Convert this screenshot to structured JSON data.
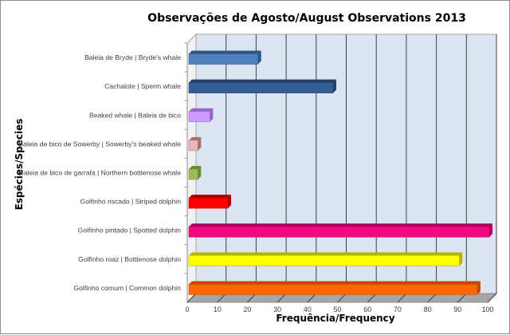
{
  "chart_data": {
    "type": "bar",
    "orientation": "horizontal",
    "title": "Observações de Agosto/August Observations 2013",
    "xlabel": "Frequência/Frequency",
    "ylabel": "Espécies/Species",
    "xlim": [
      0,
      100
    ],
    "xticks": [
      0,
      10,
      20,
      30,
      40,
      50,
      60,
      70,
      80,
      90,
      100
    ],
    "grid": true,
    "categories": [
      "Baleia de Bryde | Bryde's whale",
      "Cachalote | Sperm whale",
      "Beaked whale | Baleia de bico",
      "Baleia de bico de Sowerby | Sowerby's beaked whale",
      "Baleia de bico de garrafa | Northern bottlenose whale",
      "Golfinho riscado | Striped dolphin",
      "Golfinho pintado | Spotted dolphin",
      "Golfinho roaz | Bottlenose dolphin",
      "Golfinho comum | Common dolphin"
    ],
    "values": [
      23,
      48,
      7,
      3,
      3,
      13,
      100,
      90,
      96
    ],
    "colors": [
      "#4f81bd",
      "#345d94",
      "#cc99ff",
      "#e6b9b8",
      "#9bbb59",
      "#ff0000",
      "#f0097f",
      "#ffff00",
      "#ff6600"
    ],
    "side_colors": [
      "#2f5588",
      "#22406a",
      "#9966cc",
      "#a07370",
      "#6a8a36",
      "#b00000",
      "#b0005c",
      "#b5b500",
      "#c04a00"
    ]
  }
}
